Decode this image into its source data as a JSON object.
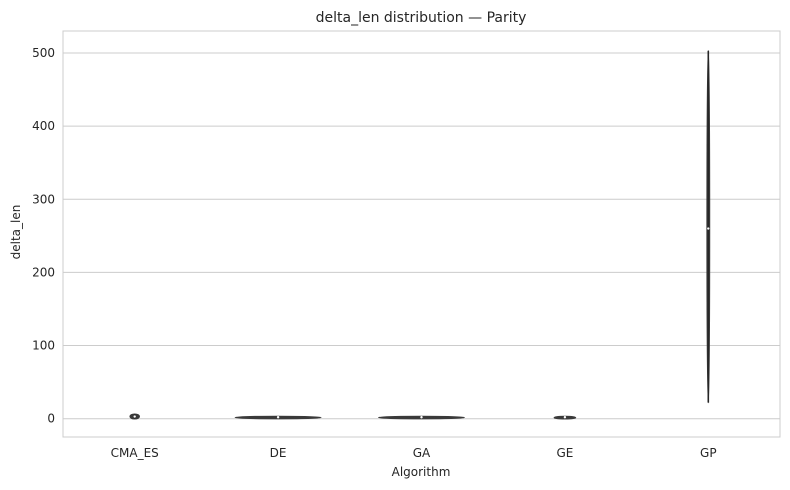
{
  "chart_data": {
    "type": "violin",
    "title": "delta_len distribution — Parity",
    "xlabel": "Algorithm",
    "ylabel": "delta_len",
    "categories": [
      "CMA_ES",
      "DE",
      "GA",
      "GE",
      "GP"
    ],
    "ylim": [
      -25,
      530
    ],
    "yticks": [
      0,
      100,
      200,
      300,
      400,
      500
    ],
    "grid": true,
    "distributions": [
      {
        "name": "CMA_ES",
        "min": 0,
        "max": 6,
        "center": 3
      },
      {
        "name": "DE",
        "min": 1,
        "max": 3,
        "center": 2
      },
      {
        "name": "GA",
        "min": 1,
        "max": 3,
        "center": 2
      },
      {
        "name": "GE",
        "min": 0,
        "max": 3,
        "center": 2
      },
      {
        "name": "GP",
        "min": 22,
        "max": 503,
        "center": 260
      }
    ],
    "colors": {
      "grid": "#cccccc",
      "frame": "#cccccc",
      "violin": "#3a3a3a"
    }
  }
}
